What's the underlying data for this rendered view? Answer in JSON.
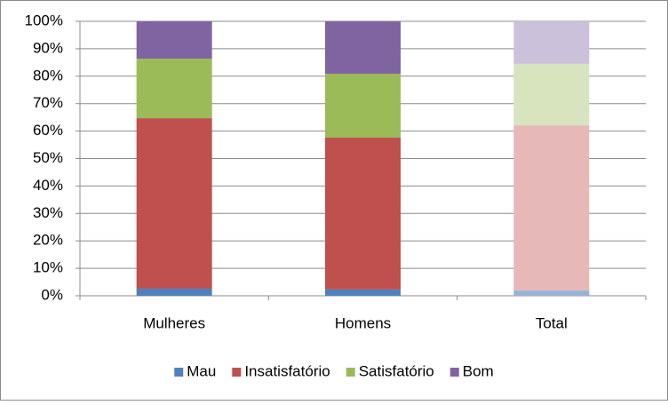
{
  "chart_data": {
    "type": "stacked_bar_100",
    "categories": [
      "Mulheres",
      "Homens",
      "Total"
    ],
    "series": [
      {
        "name": "Mau",
        "color": "#4f81bd",
        "colors": [
          "#4f81bd",
          "#4f81bd",
          "#95b3d7"
        ],
        "values": [
          2.6,
          2.3,
          1.9
        ]
      },
      {
        "name": "Insatisfatório",
        "color": "#c0504d",
        "colors": [
          "#c0504d",
          "#c0504d",
          "#e6b9b8"
        ],
        "values": [
          62.1,
          55.3,
          60.2
        ]
      },
      {
        "name": "Satisfatório",
        "color": "#9bbb59",
        "colors": [
          "#9bbb59",
          "#9bbb59",
          "#d7e4bd"
        ],
        "values": [
          21.7,
          23.3,
          22.4
        ]
      },
      {
        "name": "Bom",
        "color": "#8064a2",
        "colors": [
          "#8064a2",
          "#8064a2",
          "#ccc1da"
        ],
        "values": [
          13.6,
          19.1,
          15.5
        ]
      }
    ],
    "ylim": [
      0,
      100
    ],
    "yticks": [
      {
        "value": 0,
        "label": "0%"
      },
      {
        "value": 10,
        "label": "10%"
      },
      {
        "value": 20,
        "label": "20%"
      },
      {
        "value": 30,
        "label": "30%"
      },
      {
        "value": 40,
        "label": "40%"
      },
      {
        "value": 50,
        "label": "50%"
      },
      {
        "value": 60,
        "label": "60%"
      },
      {
        "value": 70,
        "label": "70%"
      },
      {
        "value": 80,
        "label": "80%"
      },
      {
        "value": 90,
        "label": "90%"
      },
      {
        "value": 100,
        "label": "100%"
      }
    ],
    "grid": true,
    "legend": "bottom"
  }
}
